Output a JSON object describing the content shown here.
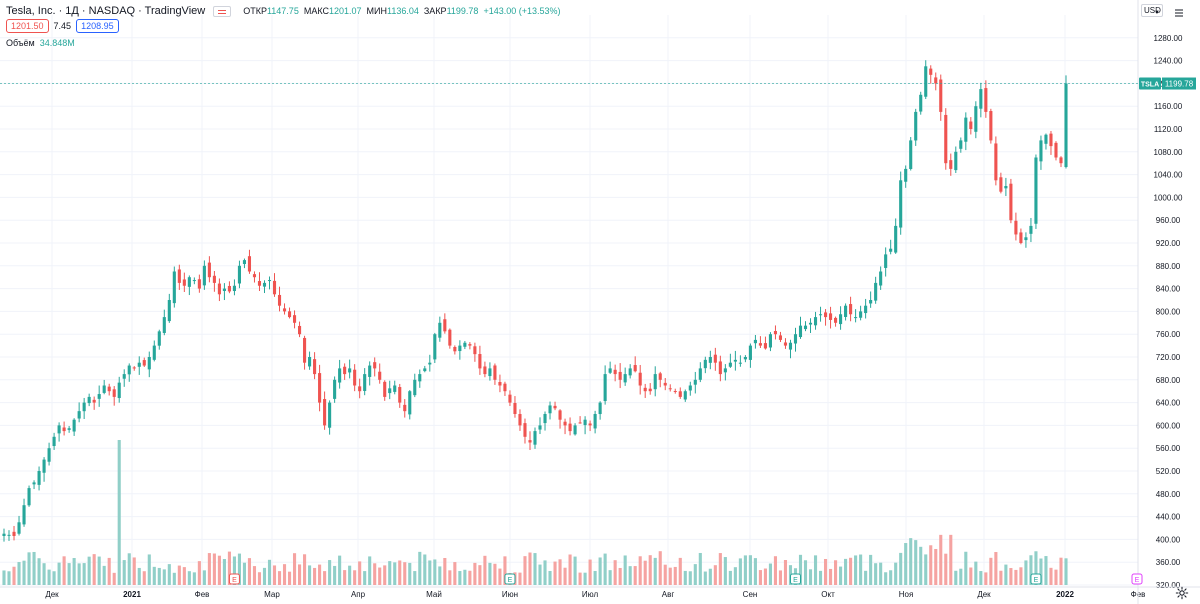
{
  "legend": {
    "title": "Tesla, Inc. · 1Д · NASDAQ · TradingView",
    "open_label": "ОТКР",
    "open": "1147.75",
    "high_label": "МАКС",
    "high": "1201.07",
    "low_label": "МИН",
    "low": "1136.04",
    "close_label": "ЗАКР",
    "close": "1199.78",
    "change": "+143.00 (+13.53%)"
  },
  "quotes": {
    "bid": "1201.50",
    "spread": "7.45",
    "ask": "1208.95"
  },
  "volume_legend": {
    "label": "Объём",
    "value": "34.848M"
  },
  "currency": "USD",
  "price_tag": {
    "symbol": "TSLA",
    "value": "1199.78"
  },
  "earnings_marker": "E",
  "colors": {
    "up": "#26a69a",
    "down": "#ef5350",
    "vol_up": "#90cfc8",
    "vol_down": "#f5a3a1",
    "grid": "#f0f3fa",
    "tag": "#26a69a"
  },
  "chart_data": {
    "type": "candlestick",
    "title": "Tesla, Inc. · 1Д · NASDAQ · TradingView",
    "xlabel": "",
    "ylabel": "",
    "ylim": [
      320,
      1320
    ],
    "y_ticks": [
      "1280.00",
      "1240.00",
      "1200.00",
      "1160.00",
      "1120.00",
      "1080.00",
      "1040.00",
      "1000.00",
      "960.00",
      "920.00",
      "880.00",
      "840.00",
      "800.00",
      "760.00",
      "720.00",
      "680.00",
      "640.00",
      "600.00",
      "560.00",
      "520.00",
      "480.00",
      "440.00",
      "400.00",
      "360.00",
      "320.00"
    ],
    "x_ticks": [
      "Дек",
      "2021",
      "Фев",
      "Мар",
      "Апр",
      "Май",
      "Июн",
      "Июл",
      "Авг",
      "Сен",
      "Окт",
      "Ноя",
      "Дек",
      "2022",
      "Фев"
    ],
    "last_close": 1199.78,
    "series": [
      {
        "name": "TSLA",
        "close": [
          410,
          408,
          406,
          430,
          460,
          490,
          500,
          520,
          540,
          560,
          580,
          600,
          590,
          595,
          610,
          625,
          640,
          650,
          640,
          655,
          670,
          660,
          650,
          675,
          690,
          705,
          700,
          710,
          705,
          720,
          740,
          765,
          790,
          820,
          870,
          850,
          845,
          860,
          855,
          840,
          880,
          860,
          850,
          830,
          840,
          835,
          845,
          880,
          890,
          870,
          860,
          845,
          850,
          855,
          830,
          810,
          800,
          790,
          780,
          760,
          710,
          720,
          690,
          640,
          600,
          640,
          680,
          700,
          690,
          700,
          670,
          660,
          690,
          705,
          700,
          680,
          650,
          665,
          670,
          640,
          625,
          660,
          680,
          690,
          700,
          710,
          760,
          780,
          765,
          740,
          730,
          740,
          745,
          740,
          725,
          700,
          690,
          700,
          680,
          670,
          660,
          640,
          620,
          600,
          580,
          570,
          590,
          600,
          620,
          635,
          630,
          610,
          600,
          590,
          600,
          605,
          610,
          600,
          620,
          640,
          690,
          700,
          690,
          680,
          690,
          700,
          695,
          670,
          660,
          660,
          690,
          680,
          670,
          665,
          660,
          650,
          660,
          670,
          680,
          700,
          715,
          720,
          710,
          690,
          700,
          710,
          715,
          710,
          720,
          740,
          750,
          740,
          735,
          760,
          760,
          750,
          740,
          745,
          760,
          775,
          775,
          780,
          790,
          795,
          790,
          785,
          780,
          795,
          810,
          795,
          790,
          800,
          810,
          820,
          850,
          870,
          900,
          910,
          950,
          1030,
          1050,
          1100,
          1150,
          1180,
          1230,
          1215,
          1200,
          1150,
          1060,
          1050,
          1080,
          1100,
          1140,
          1120,
          1160,
          1190,
          1150,
          1100,
          1030,
          1010,
          1020,
          960,
          935,
          920,
          930,
          950,
          1070,
          1100,
          1110,
          1090,
          1070,
          1060,
          1199.78
        ]
      }
    ]
  }
}
